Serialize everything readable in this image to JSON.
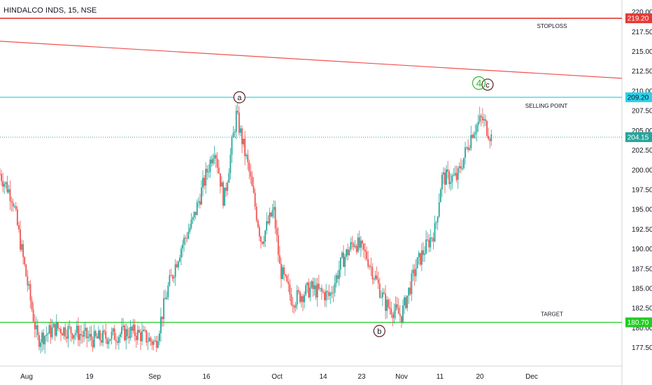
{
  "header": {
    "symbol": "HINDALCO INDS, 15, NSE"
  },
  "colors": {
    "up": "#26a69a",
    "down": "#ef5350",
    "stoploss": "#e53935",
    "selling": "#29d3ec",
    "target": "#22cc22",
    "trend": "#ef5350",
    "last": "#26a69a",
    "wave4": "#2eb82e"
  },
  "chart_data": {
    "type": "candlestick",
    "title": "HINDALCO INDS, 15, NSE",
    "ylim": [
      176.4,
      220.1
    ],
    "y_ticks": [
      177.5,
      180.0,
      182.5,
      185.0,
      187.5,
      190.0,
      192.5,
      195.0,
      197.5,
      200.0,
      202.5,
      205.0,
      207.5,
      210.0,
      212.5,
      215.0,
      217.5,
      220.0
    ],
    "y_tick_labels": [
      "177.50",
      "180.00",
      "182.50",
      "185.00",
      "187.50",
      "190.00",
      "192.50",
      "195.00",
      "197.50",
      "200.00",
      "202.50",
      "205.00",
      "207.50",
      "210.00",
      "212.50",
      "215.00",
      "217.50",
      "220.00"
    ],
    "x_ticks": [
      "Aug",
      "19",
      "Sep",
      "16",
      "Oct",
      "14",
      "23",
      "Nov",
      "11",
      "20",
      "Dec"
    ],
    "price_path": [
      {
        "t": 0,
        "p": 199.5
      },
      {
        "t": 0.02,
        "p": 196.5
      },
      {
        "t": 0.04,
        "p": 187.5
      },
      {
        "t": 0.06,
        "p": 178.5
      },
      {
        "t": 0.09,
        "p": 180.0
      },
      {
        "t": 0.12,
        "p": 179.5
      },
      {
        "t": 0.15,
        "p": 178.5
      },
      {
        "t": 0.18,
        "p": 179.0
      },
      {
        "t": 0.21,
        "p": 179.5
      },
      {
        "t": 0.23,
        "p": 179.0
      },
      {
        "t": 0.25,
        "p": 178.0
      },
      {
        "t": 0.27,
        "p": 185.0
      },
      {
        "t": 0.29,
        "p": 190.0
      },
      {
        "t": 0.31,
        "p": 193.5
      },
      {
        "t": 0.33,
        "p": 199.0
      },
      {
        "t": 0.345,
        "p": 203.0
      },
      {
        "t": 0.36,
        "p": 196.0
      },
      {
        "t": 0.38,
        "p": 207.0
      },
      {
        "t": 0.4,
        "p": 200.0
      },
      {
        "t": 0.42,
        "p": 191.0
      },
      {
        "t": 0.44,
        "p": 195.0
      },
      {
        "t": 0.45,
        "p": 187.5
      },
      {
        "t": 0.47,
        "p": 183.5
      },
      {
        "t": 0.5,
        "p": 185.0
      },
      {
        "t": 0.53,
        "p": 184.0
      },
      {
        "t": 0.55,
        "p": 188.5
      },
      {
        "t": 0.57,
        "p": 191.0
      },
      {
        "t": 0.59,
        "p": 189.0
      },
      {
        "t": 0.62,
        "p": 183.0
      },
      {
        "t": 0.645,
        "p": 181.5
      },
      {
        "t": 0.67,
        "p": 188.0
      },
      {
        "t": 0.69,
        "p": 191.0
      },
      {
        "t": 0.7,
        "p": 192.5
      },
      {
        "t": 0.71,
        "p": 199.0
      },
      {
        "t": 0.735,
        "p": 199.0
      },
      {
        "t": 0.76,
        "p": 205.0
      },
      {
        "t": 0.775,
        "p": 206.5
      },
      {
        "t": 0.79,
        "p": 204.15
      }
    ],
    "last_price": 204.15,
    "last_price_label": "204.15",
    "horizontal_lines": [
      {
        "name": "stoploss",
        "value": 219.2,
        "label": "219.20",
        "text": "STOPLOSS"
      },
      {
        "name": "selling-point",
        "value": 209.2,
        "label": "209.20",
        "text": "SELLING POINT"
      },
      {
        "name": "target",
        "value": 180.7,
        "label": "180.70",
        "text": "TARGET"
      }
    ],
    "trendline": {
      "from": {
        "t": 0,
        "p": 216.3
      },
      "to": {
        "t": 1,
        "p": 211.6
      }
    },
    "wave_labels": [
      {
        "label": "a",
        "t": 0.385,
        "p": 209.2
      },
      {
        "label": "b",
        "t": 0.61,
        "p": 179.6
      },
      {
        "label": "c",
        "t": 0.784,
        "p": 210.8
      },
      {
        "label": "4",
        "t": 0.77,
        "p": 211.0
      }
    ]
  }
}
